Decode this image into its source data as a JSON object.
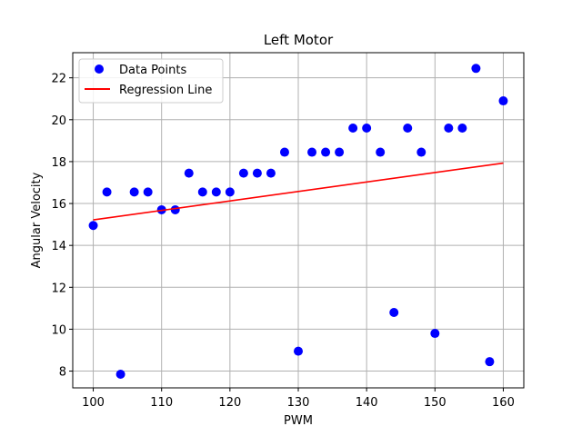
{
  "chart_data": {
    "type": "scatter",
    "title": "Left Motor",
    "xlabel": "PWM",
    "ylabel": "Angular Velocity",
    "xlim": [
      97,
      163
    ],
    "ylim": [
      7.2,
      23.2
    ],
    "xticks": [
      100,
      110,
      120,
      130,
      140,
      150,
      160
    ],
    "yticks": [
      8,
      10,
      12,
      14,
      16,
      18,
      20,
      22
    ],
    "grid": true,
    "legend_position": "top-left",
    "series": [
      {
        "name": "Data Points",
        "kind": "scatter",
        "color": "#0000ff",
        "points": [
          [
            100,
            14.95
          ],
          [
            102,
            16.55
          ],
          [
            104,
            7.85
          ],
          [
            106,
            16.55
          ],
          [
            108,
            16.55
          ],
          [
            110,
            15.7
          ],
          [
            112,
            15.7
          ],
          [
            114,
            17.45
          ],
          [
            116,
            16.55
          ],
          [
            118,
            16.55
          ],
          [
            120,
            16.55
          ],
          [
            122,
            17.45
          ],
          [
            124,
            17.45
          ],
          [
            126,
            17.45
          ],
          [
            128,
            18.45
          ],
          [
            130,
            8.95
          ],
          [
            132,
            18.45
          ],
          [
            134,
            18.45
          ],
          [
            136,
            18.45
          ],
          [
            138,
            19.6
          ],
          [
            140,
            19.6
          ],
          [
            142,
            18.45
          ],
          [
            144,
            10.8
          ],
          [
            146,
            19.6
          ],
          [
            148,
            18.45
          ],
          [
            150,
            9.8
          ],
          [
            152,
            19.6
          ],
          [
            154,
            19.6
          ],
          [
            156,
            22.45
          ],
          [
            158,
            8.45
          ],
          [
            160,
            20.9
          ]
        ]
      },
      {
        "name": "Regression Line",
        "kind": "line",
        "color": "#ff0000",
        "points": [
          [
            100,
            15.22
          ],
          [
            160,
            17.93
          ]
        ]
      }
    ]
  }
}
